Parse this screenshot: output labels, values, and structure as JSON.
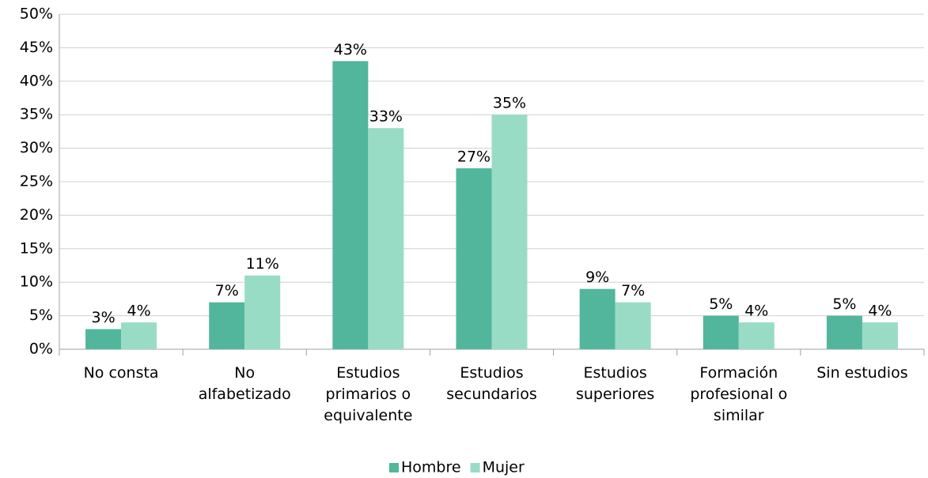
{
  "chart_data": {
    "type": "bar",
    "categories": [
      "No consta",
      "No alfabetizado",
      "Estudios primarios o equivalente",
      "Estudios secundarios",
      "Estudios superiores",
      "Formación profesional o similar",
      "Sin estudios"
    ],
    "series": [
      {
        "name": "Hombre",
        "color": "#52b69c",
        "values": [
          3,
          7,
          43,
          27,
          9,
          5,
          5
        ],
        "value_labels": [
          "3%",
          "7%",
          "43%",
          "27%",
          "9%",
          "5%",
          "5%"
        ]
      },
      {
        "name": "Mujer",
        "color": "#99dcc5",
        "values": [
          4,
          11,
          33,
          35,
          7,
          4,
          4
        ],
        "value_labels": [
          "4%",
          "11%",
          "33%",
          "35%",
          "7%",
          "4%",
          "4%"
        ]
      }
    ],
    "ylim": [
      0,
      50
    ],
    "yticks": [
      {
        "value": 0,
        "label": "0%"
      },
      {
        "value": 5,
        "label": "5%"
      },
      {
        "value": 10,
        "label": "10%"
      },
      {
        "value": 15,
        "label": "15%"
      },
      {
        "value": 20,
        "label": "20%"
      },
      {
        "value": 25,
        "label": "25%"
      },
      {
        "value": 30,
        "label": "30%"
      },
      {
        "value": 35,
        "label": "35%"
      },
      {
        "value": 40,
        "label": "40%"
      },
      {
        "value": 45,
        "label": "45%"
      },
      {
        "value": 50,
        "label": "50%"
      }
    ],
    "grid": true,
    "legend": "bottom"
  }
}
